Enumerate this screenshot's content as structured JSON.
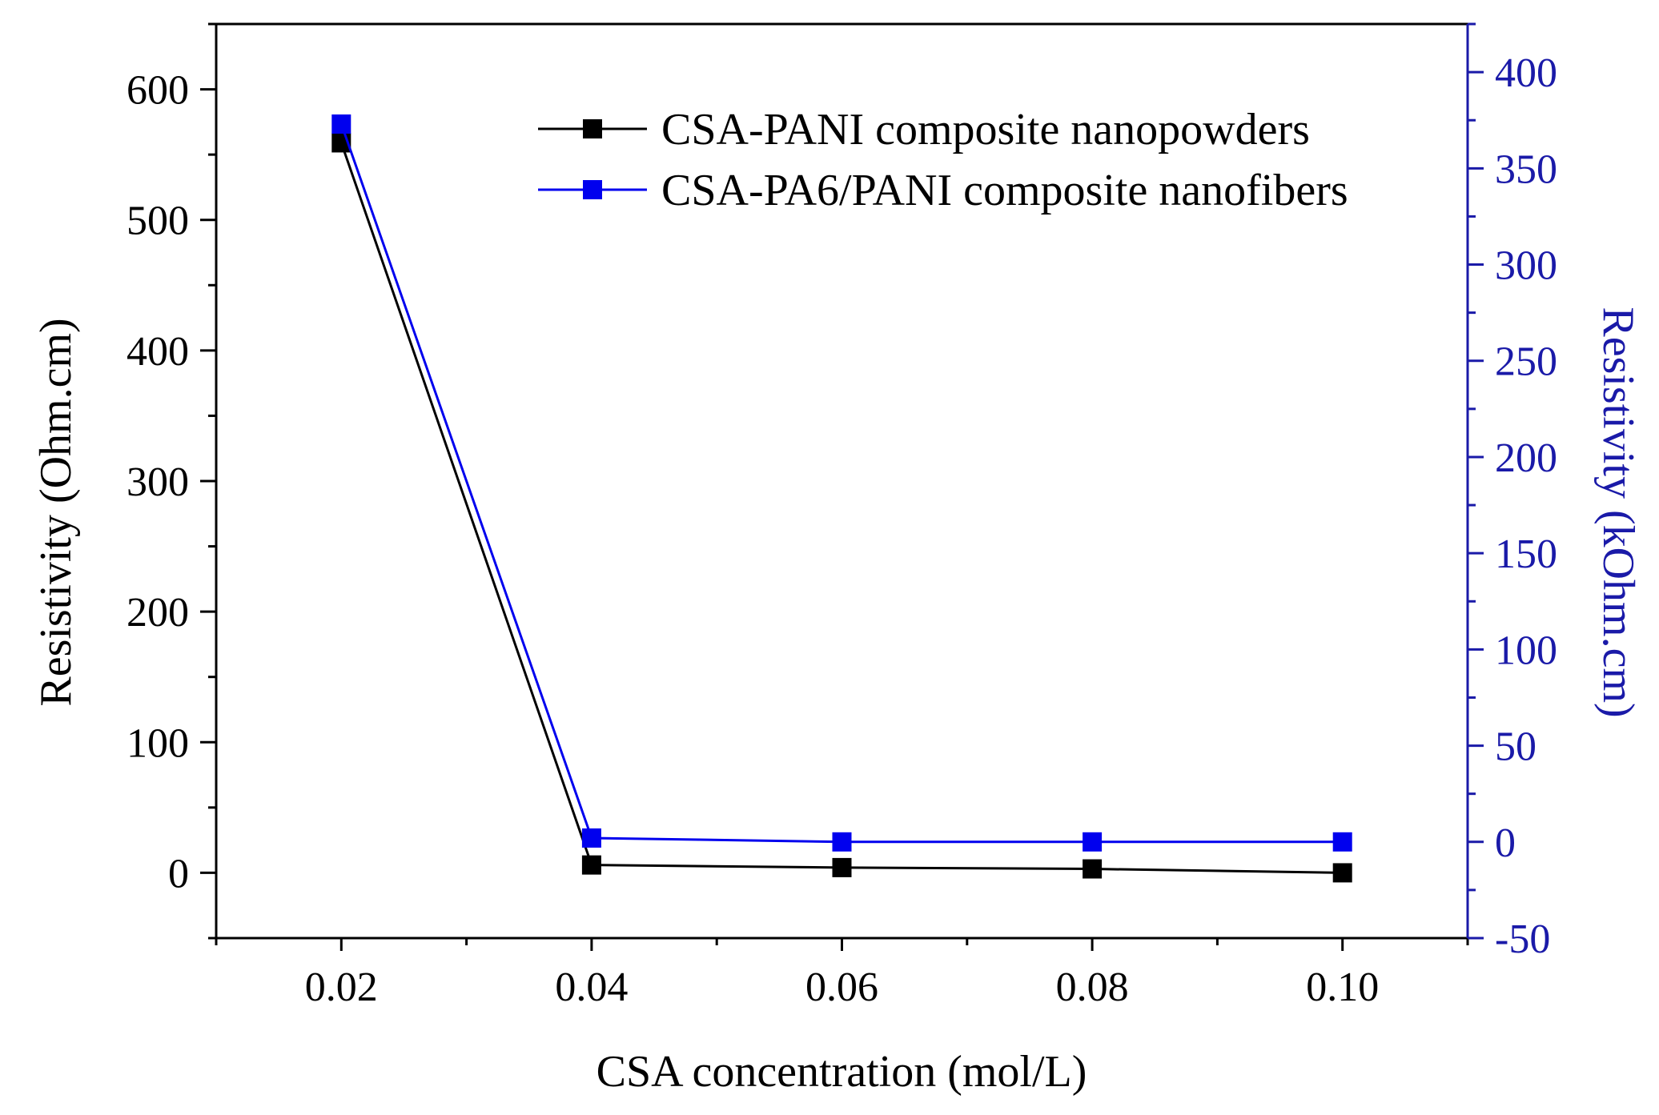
{
  "colors": {
    "left_axis": "#000000",
    "right_axis": "#1a1aa8",
    "series_black": "#000000",
    "series_blue": "#0000ee"
  },
  "chart_data": {
    "type": "line",
    "title": "",
    "xlabel": "CSA concentration (mol/L)",
    "ylabel_left": "Resistivity (Ohm.cm)",
    "ylabel_right": "Resistivity (kOhm.cm)",
    "x": [
      0.02,
      0.04,
      0.06,
      0.08,
      0.1
    ],
    "xlim": [
      0.01,
      0.11
    ],
    "ylim_left": [
      -50,
      650
    ],
    "ylim_right": [
      -50,
      425
    ],
    "x_ticks": [
      0.02,
      0.04,
      0.06,
      0.08,
      0.1
    ],
    "x_tick_labels": [
      "0.02",
      "0.04",
      "0.06",
      "0.08",
      "0.10"
    ],
    "y_left_ticks": [
      0,
      100,
      200,
      300,
      400,
      500,
      600
    ],
    "y_left_tick_labels": [
      "0",
      "100",
      "200",
      "300",
      "400",
      "500",
      "600"
    ],
    "y_right_ticks": [
      -50,
      0,
      50,
      100,
      150,
      200,
      250,
      300,
      350,
      400
    ],
    "y_right_tick_labels": [
      "-50",
      "0",
      "50",
      "100",
      "150",
      "200",
      "250",
      "300",
      "350",
      "400"
    ],
    "grid": false,
    "legend_position": "top-right",
    "series": [
      {
        "name": "CSA-PANI composite nanopowders",
        "axis": "left",
        "color": "#000000",
        "marker": "square",
        "values": [
          559,
          6,
          4,
          3,
          0
        ]
      },
      {
        "name": "CSA-PA6/PANI composite nanofibers",
        "axis": "right",
        "color": "#0000ee",
        "marker": "square",
        "values": [
          373,
          2,
          0,
          0,
          0
        ]
      }
    ]
  }
}
